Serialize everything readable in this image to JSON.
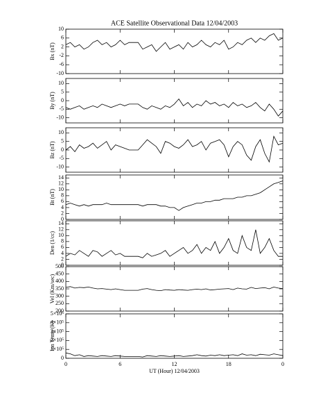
{
  "chart_data": [
    {
      "type": "line",
      "title": "ACE Satellite Observational Data   12/04/2003",
      "ylabel": "Bx (nT)",
      "color": "#000000",
      "x": [
        0,
        0.5,
        1,
        1.5,
        2,
        2.5,
        3,
        3.5,
        4,
        4.5,
        5,
        5.5,
        6,
        6.5,
        7,
        7.5,
        8,
        8.5,
        9,
        9.5,
        10,
        10.5,
        11,
        11.5,
        12,
        12.5,
        13,
        13.5,
        14,
        14.5,
        15,
        15.5,
        16,
        16.5,
        17,
        17.5,
        18,
        18.5,
        19,
        19.5,
        20,
        20.5,
        21,
        21.5,
        22,
        22.5,
        23,
        23.5,
        24
      ],
      "values": [
        3,
        4,
        2,
        3,
        1,
        2,
        4,
        5,
        3,
        4,
        2,
        3,
        5,
        3,
        4,
        4,
        4,
        1,
        2,
        3,
        0,
        2,
        4,
        1,
        2,
        3,
        1,
        4,
        2,
        3,
        5,
        3,
        2,
        4,
        3,
        5,
        1,
        2,
        4,
        3,
        5,
        6,
        4,
        6,
        5,
        7,
        8,
        5,
        6
      ],
      "xlim": [
        0,
        24
      ],
      "xticks": [
        0,
        6,
        12,
        18,
        {
          "value": 24,
          "label": "0"
        }
      ],
      "ylim": [
        -10,
        10
      ],
      "yticks": [
        -10,
        -6,
        -2,
        2,
        6,
        10
      ]
    },
    {
      "type": "line",
      "ylabel": "By (nT)",
      "color": "#000000",
      "x": [
        0,
        0.5,
        1,
        1.5,
        2,
        2.5,
        3,
        3.5,
        4,
        4.5,
        5,
        5.5,
        6,
        6.5,
        7,
        7.5,
        8,
        8.5,
        9,
        9.5,
        10,
        10.5,
        11,
        11.5,
        12,
        12.5,
        13,
        13.5,
        14,
        14.5,
        15,
        15.5,
        16,
        16.5,
        17,
        17.5,
        18,
        18.5,
        19,
        19.5,
        20,
        20.5,
        21,
        21.5,
        22,
        22.5,
        23,
        23.5,
        24
      ],
      "values": [
        -4,
        -5,
        -4,
        -3,
        -5,
        -4,
        -3,
        -4,
        -2,
        -3,
        -4,
        -3,
        -2,
        -3,
        -2,
        -2,
        -2,
        -4,
        -5,
        -3,
        -4,
        -5,
        -3,
        -4,
        -2,
        1,
        -3,
        -1,
        -4,
        -2,
        -3,
        0,
        -2,
        -1,
        -3,
        -2,
        -4,
        -1,
        -3,
        -2,
        -4,
        -3,
        -1,
        -4,
        -6,
        -2,
        -5,
        -9,
        -6
      ],
      "xlim": [
        0,
        24
      ],
      "xticks": [
        0,
        6,
        12,
        18,
        {
          "value": 24,
          "label": "0"
        }
      ],
      "ylim": [
        -13,
        13
      ],
      "yticks": [
        -10,
        -5,
        0,
        5,
        10
      ]
    },
    {
      "type": "line",
      "ylabel": "Bz (nT)",
      "color": "#000000",
      "x": [
        0,
        0.5,
        1,
        1.5,
        2,
        2.5,
        3,
        3.5,
        4,
        4.5,
        5,
        5.5,
        6,
        6.5,
        7,
        7.5,
        8,
        8.5,
        9,
        9.5,
        10,
        10.5,
        11,
        11.5,
        12,
        12.5,
        13,
        13.5,
        14,
        14.5,
        15,
        15.5,
        16,
        16.5,
        17,
        17.5,
        18,
        18.5,
        19,
        19.5,
        20,
        20.5,
        21,
        21.5,
        22,
        22.5,
        23,
        23.5,
        24
      ],
      "values": [
        0,
        2,
        -1,
        3,
        1,
        2,
        4,
        1,
        3,
        5,
        0,
        3,
        2,
        1,
        0,
        0,
        0,
        3,
        6,
        4,
        2,
        -2,
        5,
        4,
        2,
        1,
        3,
        6,
        2,
        3,
        5,
        0,
        4,
        5,
        6,
        3,
        -4,
        2,
        5,
        3,
        -3,
        -6,
        2,
        6,
        -2,
        -7,
        8,
        3,
        4
      ],
      "xlim": [
        0,
        24
      ],
      "xticks": [
        0,
        6,
        12,
        18,
        {
          "value": 24,
          "label": "0"
        }
      ],
      "ylim": [
        -13,
        13
      ],
      "yticks": [
        -10,
        -5,
        0,
        5,
        10
      ]
    },
    {
      "type": "line",
      "ylabel": "Bt (nT)",
      "color": "#000000",
      "x": [
        0,
        0.5,
        1,
        1.5,
        2,
        2.5,
        3,
        3.5,
        4,
        4.5,
        5,
        5.5,
        6,
        6.5,
        7,
        7.5,
        8,
        8.5,
        9,
        9.5,
        10,
        10.5,
        11,
        11.5,
        12,
        12.5,
        13,
        13.5,
        14,
        14.5,
        15,
        15.5,
        16,
        16.5,
        17,
        17.5,
        18,
        18.5,
        19,
        19.5,
        20,
        20.5,
        21,
        21.5,
        22,
        22.5,
        23,
        23.5,
        24
      ],
      "values": [
        5,
        5.5,
        5,
        4.5,
        5,
        4.5,
        5,
        5,
        5,
        5.5,
        5,
        5,
        5,
        5,
        5,
        5,
        5,
        4.5,
        5,
        5,
        5,
        4.5,
        4.5,
        4,
        4,
        3,
        4,
        4.5,
        5,
        5.5,
        5.5,
        6,
        6,
        6.5,
        6.5,
        7,
        7,
        7,
        7.5,
        7.5,
        8,
        8,
        8.5,
        9,
        10,
        11,
        12,
        12.5,
        13
      ],
      "xlim": [
        0,
        24
      ],
      "xticks": [
        0,
        6,
        12,
        18,
        {
          "value": 24,
          "label": "0"
        }
      ],
      "ylim": [
        0,
        15
      ],
      "yticks": [
        0,
        2,
        4,
        6,
        8,
        10,
        12,
        14
      ]
    },
    {
      "type": "line",
      "ylabel": "Den (1/cc)",
      "color": "#000000",
      "x": [
        0,
        0.5,
        1,
        1.5,
        2,
        2.5,
        3,
        3.5,
        4,
        4.5,
        5,
        5.5,
        6,
        6.5,
        7,
        7.5,
        8,
        8.5,
        9,
        9.5,
        10,
        10.5,
        11,
        11.5,
        12,
        12.5,
        13,
        13.5,
        14,
        14.5,
        15,
        15.5,
        16,
        16.5,
        17,
        17.5,
        18,
        18.5,
        19,
        19.5,
        20,
        20.5,
        21,
        21.5,
        22,
        22.5,
        23,
        23.5,
        24
      ],
      "values": [
        3,
        4,
        3.5,
        5,
        4,
        3,
        5,
        4.5,
        3,
        4,
        5,
        3.5,
        4,
        3,
        3,
        3,
        3,
        2.5,
        4,
        3,
        3.5,
        4,
        5,
        3,
        4,
        5,
        6,
        4,
        5,
        7,
        4,
        6,
        5,
        8,
        4,
        6,
        9,
        5,
        4,
        10,
        6,
        5,
        12,
        4,
        6,
        9,
        5,
        3,
        3
      ],
      "xlim": [
        0,
        24
      ],
      "xticks": [
        0,
        6,
        12,
        18,
        {
          "value": 24,
          "label": "0"
        }
      ],
      "ylim": [
        0,
        15
      ],
      "yticks": [
        0,
        2,
        4,
        6,
        8,
        10,
        12,
        14
      ]
    },
    {
      "type": "line",
      "ylabel": "Vel (Km/sec)",
      "color": "#000000",
      "x": [
        0,
        0.5,
        1,
        1.5,
        2,
        2.5,
        3,
        3.5,
        4,
        4.5,
        5,
        5.5,
        6,
        6.5,
        7,
        7.5,
        8,
        8.5,
        9,
        9.5,
        10,
        10.5,
        11,
        11.5,
        12,
        12.5,
        13,
        13.5,
        14,
        14.5,
        15,
        15.5,
        16,
        16.5,
        17,
        17.5,
        18,
        18.5,
        19,
        19.5,
        20,
        20.5,
        21,
        21.5,
        22,
        22.5,
        23,
        23.5,
        24
      ],
      "values": [
        360,
        365,
        355,
        360,
        358,
        362,
        355,
        350,
        352,
        348,
        345,
        350,
        345,
        340,
        340,
        340,
        340,
        348,
        352,
        345,
        340,
        338,
        345,
        342,
        340,
        345,
        342,
        340,
        345,
        348,
        345,
        350,
        342,
        345,
        348,
        350,
        352,
        345,
        355,
        350,
        348,
        360,
        352,
        355,
        358,
        350,
        362,
        355,
        352
      ],
      "xlim": [
        0,
        24
      ],
      "xticks": [
        0,
        6,
        12,
        18,
        {
          "value": 24,
          "label": "0"
        }
      ],
      "ylim": [
        200,
        500
      ],
      "yticks": [
        200,
        250,
        300,
        350,
        400,
        450,
        500
      ]
    },
    {
      "type": "line",
      "ylabel": "Ion Temp (K)",
      "xlabel": "UT (Hour)  12/04/2003",
      "color": "#000000",
      "x": [
        0,
        0.5,
        1,
        1.5,
        2,
        2.5,
        3,
        3.5,
        4,
        4.5,
        5,
        5.5,
        6,
        6.5,
        7,
        7.5,
        8,
        8.5,
        9,
        9.5,
        10,
        10.5,
        11,
        11.5,
        12,
        12.5,
        13,
        13.5,
        14,
        14.5,
        15,
        15.5,
        16,
        16.5,
        17,
        17.5,
        18,
        18.5,
        19,
        19.5,
        20,
        20.5,
        21,
        21.5,
        22,
        22.5,
        23,
        23.5,
        24
      ],
      "values": [
        60000,
        50000,
        30000,
        40000,
        20000,
        30000,
        25000,
        20000,
        30000,
        25000,
        20000,
        30000,
        25000,
        20000,
        20000,
        20000,
        20000,
        15000,
        30000,
        25000,
        20000,
        30000,
        25000,
        20000,
        25000,
        30000,
        20000,
        25000,
        30000,
        40000,
        30000,
        25000,
        35000,
        30000,
        40000,
        30000,
        35000,
        40000,
        30000,
        50000,
        35000,
        40000,
        30000,
        45000,
        40000,
        35000,
        50000,
        40000,
        30000
      ],
      "xlim": [
        0,
        24
      ],
      "xticks": [
        0,
        6,
        12,
        18,
        {
          "value": 24,
          "label": "0"
        }
      ],
      "ylim": [
        0,
        500000
      ],
      "yticks": [
        0,
        {
          "value": 100000,
          "label": "1×10⁵"
        },
        {
          "value": 200000,
          "label": "2×10⁵"
        },
        {
          "value": 300000,
          "label": "3×10⁵"
        },
        {
          "value": 400000,
          "label": "4×10⁵"
        },
        {
          "value": 500000,
          "label": "5×10⁵"
        }
      ]
    }
  ]
}
